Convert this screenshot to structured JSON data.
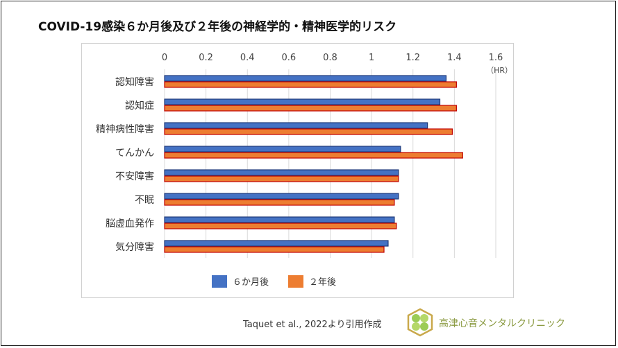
{
  "title": "COVID-19感染６か月後及び２年後の神経学的・精神医学的リスク",
  "chart_data": {
    "type": "bar",
    "orientation": "horizontal",
    "title": "COVID-19感染６か月後及び２年後の神経学的・精神医学的リスク",
    "categories": [
      "認知障害",
      "認知症",
      "精神病性障害",
      "てんかん",
      "不安障害",
      "不眠",
      "脳虚血発作",
      "気分障害"
    ],
    "series": [
      {
        "name": "６か月後",
        "color": "#4472c4",
        "values": [
          1.36,
          1.33,
          1.27,
          1.14,
          1.13,
          1.13,
          1.11,
          1.08
        ]
      },
      {
        "name": "２年後",
        "color": "#ed7d31",
        "values": [
          1.41,
          1.41,
          1.39,
          1.44,
          1.13,
          1.11,
          1.12,
          1.06
        ]
      }
    ],
    "xlim": [
      0,
      1.6
    ],
    "ticks": [
      "0",
      "0.2",
      "0.4",
      "0.6",
      "0.8",
      "1",
      "1.2",
      "1.4",
      "1.6"
    ],
    "unit_label": "（HR）",
    "grid": true,
    "legend": "bottom"
  },
  "citation": "Taquet et al., 2022より引用作成",
  "clinic_name": "高津心音メンタルクリニック"
}
